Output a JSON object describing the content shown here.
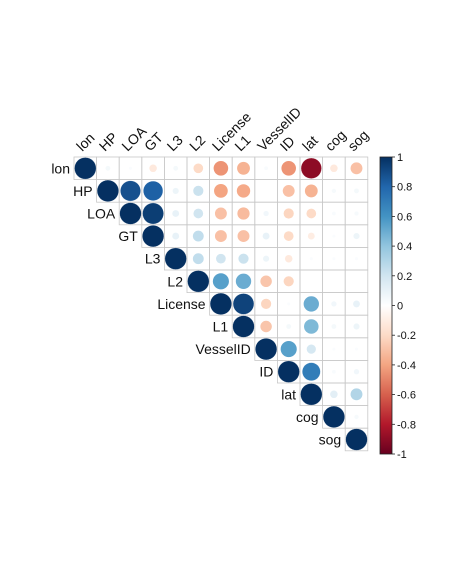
{
  "chart_data": {
    "type": "heatmap",
    "title": "",
    "variables": [
      "lon",
      "HP",
      "LOA",
      "GT",
      "L3",
      "L2",
      "License",
      "L1",
      "VesselID",
      "ID",
      "lat",
      "cog",
      "sog"
    ],
    "matrix_type": "upper",
    "method": "circle",
    "color_scale": {
      "low": "#67001F",
      "mid": "#FFFFFF",
      "high": "#053061",
      "range": [
        -1,
        1
      ]
    },
    "colorbar_ticks": [
      "1",
      "0.8",
      "0.6",
      "0.4",
      "0.2",
      "0",
      "-0.2",
      "-0.4",
      "-0.6",
      "-0.8",
      "-1"
    ],
    "grid": true,
    "legend": "right",
    "matrix": [
      [
        1,
        0.05,
        0.02,
        -0.12,
        0.05,
        -0.2,
        -0.45,
        -0.35,
        0.03,
        -0.45,
        -0.9,
        -0.12,
        -0.3
      ],
      [
        null,
        1,
        0.88,
        0.82,
        0.08,
        0.22,
        -0.4,
        -0.38,
        0.0,
        -0.3,
        -0.35,
        0.04,
        0.05
      ],
      [
        null,
        null,
        1,
        0.95,
        0.1,
        0.2,
        -0.3,
        -0.32,
        0.06,
        -0.22,
        -0.2,
        0.03,
        0.04
      ],
      [
        null,
        null,
        null,
        1,
        0.1,
        0.25,
        -0.3,
        -0.3,
        0.1,
        -0.2,
        -0.1,
        0.02,
        0.08
      ],
      [
        null,
        null,
        null,
        null,
        1,
        0.25,
        0.2,
        0.22,
        0.08,
        -0.12,
        0.02,
        0.02,
        0.02
      ],
      [
        null,
        null,
        null,
        null,
        null,
        1,
        0.55,
        0.5,
        -0.28,
        -0.22,
        0.0,
        0.0,
        0.0
      ],
      [
        null,
        null,
        null,
        null,
        null,
        null,
        1,
        0.93,
        -0.22,
        0.02,
        0.5,
        0.06,
        0.1
      ],
      [
        null,
        null,
        null,
        null,
        null,
        null,
        null,
        1,
        -0.28,
        0.05,
        0.45,
        0.05,
        0.08
      ],
      [
        null,
        null,
        null,
        null,
        null,
        null,
        null,
        null,
        1,
        0.55,
        0.18,
        0.02,
        0.02
      ],
      [
        null,
        null,
        null,
        null,
        null,
        null,
        null,
        null,
        null,
        1,
        0.7,
        0.03,
        0.06
      ],
      [
        null,
        null,
        null,
        null,
        null,
        null,
        null,
        null,
        null,
        null,
        1,
        0.12,
        0.3
      ],
      [
        null,
        null,
        null,
        null,
        null,
        null,
        null,
        null,
        null,
        null,
        null,
        1,
        0.04
      ],
      [
        null,
        null,
        null,
        null,
        null,
        null,
        null,
        null,
        null,
        null,
        null,
        null,
        1
      ]
    ]
  }
}
